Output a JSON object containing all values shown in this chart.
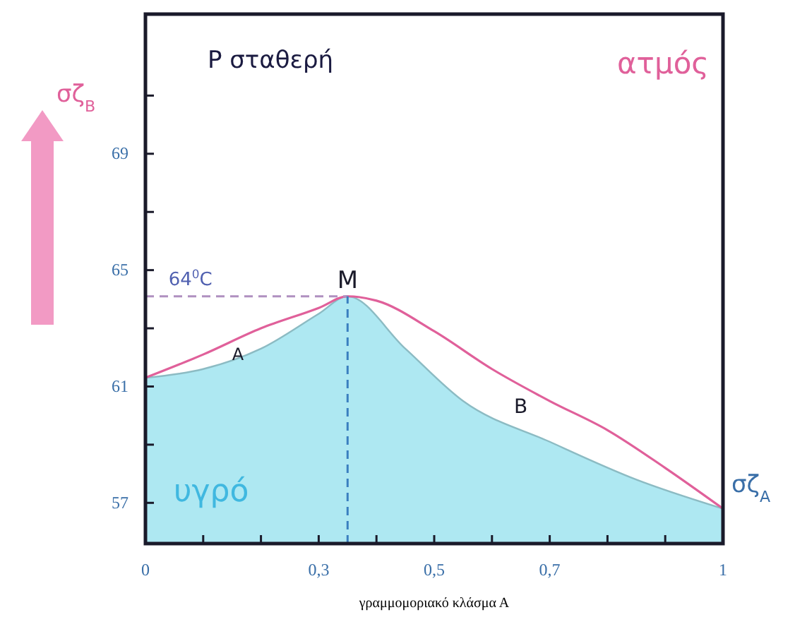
{
  "chart_data": {
    "type": "line",
    "title": "P σταθερή",
    "xlabel": "γραμμομοριακό κλάσμα Α",
    "ylabel": "σζ$_{B}$",
    "xlim": [
      0,
      1
    ],
    "ylim": [
      55.6,
      73.8
    ],
    "xticks": [
      0,
      {
        "value": 0.1,
        "label": null
      },
      {
        "value": 0.2,
        "label": null
      },
      {
        "value": 0.3,
        "label": "0,3"
      },
      {
        "value": 0.4,
        "label": null
      },
      {
        "value": 0.5,
        "label": "0,5"
      },
      {
        "value": 0.6,
        "label": null
      },
      {
        "value": 0.7,
        "label": "0,7"
      },
      {
        "value": 0.8,
        "label": null
      },
      {
        "value": 0.9,
        "label": null
      },
      1
    ],
    "yticks": [
      57,
      {
        "value": 59,
        "label": null
      },
      61,
      {
        "value": 63,
        "label": null
      },
      65,
      {
        "value": 67,
        "label": null
      },
      69,
      {
        "value": 71,
        "label": null
      }
    ],
    "series": [
      {
        "type": "area",
        "color": "#aee8f2",
        "x": [
          0,
          0.1,
          0.2,
          0.3,
          0.35,
          0.45,
          0.55,
          0.7,
          0.85,
          1
        ],
        "values": [
          61.3,
          61.6,
          62.3,
          63.5,
          64.1,
          62.3,
          60.5,
          59.1,
          57.8,
          56.8
        ]
      },
      {
        "color": "#e0609a",
        "x": [
          0,
          0.1,
          0.2,
          0.3,
          0.35,
          0.4,
          0.5,
          0.6,
          0.7,
          0.8,
          0.9,
          1
        ],
        "values": [
          61.3,
          62.1,
          63.0,
          63.7,
          64.1,
          63.95,
          62.9,
          61.6,
          60.5,
          59.5,
          58.2,
          56.8
        ]
      }
    ],
    "ref_lines": [
      {
        "axis": "y",
        "value": 64.1,
        "label": "64$^{0}$C",
        "color": "#b090c0",
        "line_style": "dashed"
      },
      {
        "axis": "x",
        "value": 0.35,
        "color": "#3a7fc0",
        "line_style": "dashed"
      }
    ],
    "annotations": [
      {
        "text": "M",
        "x": 0.35,
        "y": 64.1
      },
      {
        "text": "A",
        "x": 0.16,
        "y": 62.6
      },
      {
        "text": "B",
        "x": 0.65,
        "y": 61.05
      },
      "ατμός",
      "υγρό",
      {
        "text": "σζ$_{A}$",
        "x": 1,
        "y": 56.8
      }
    ],
    "grid": false,
    "marker": "none"
  }
}
